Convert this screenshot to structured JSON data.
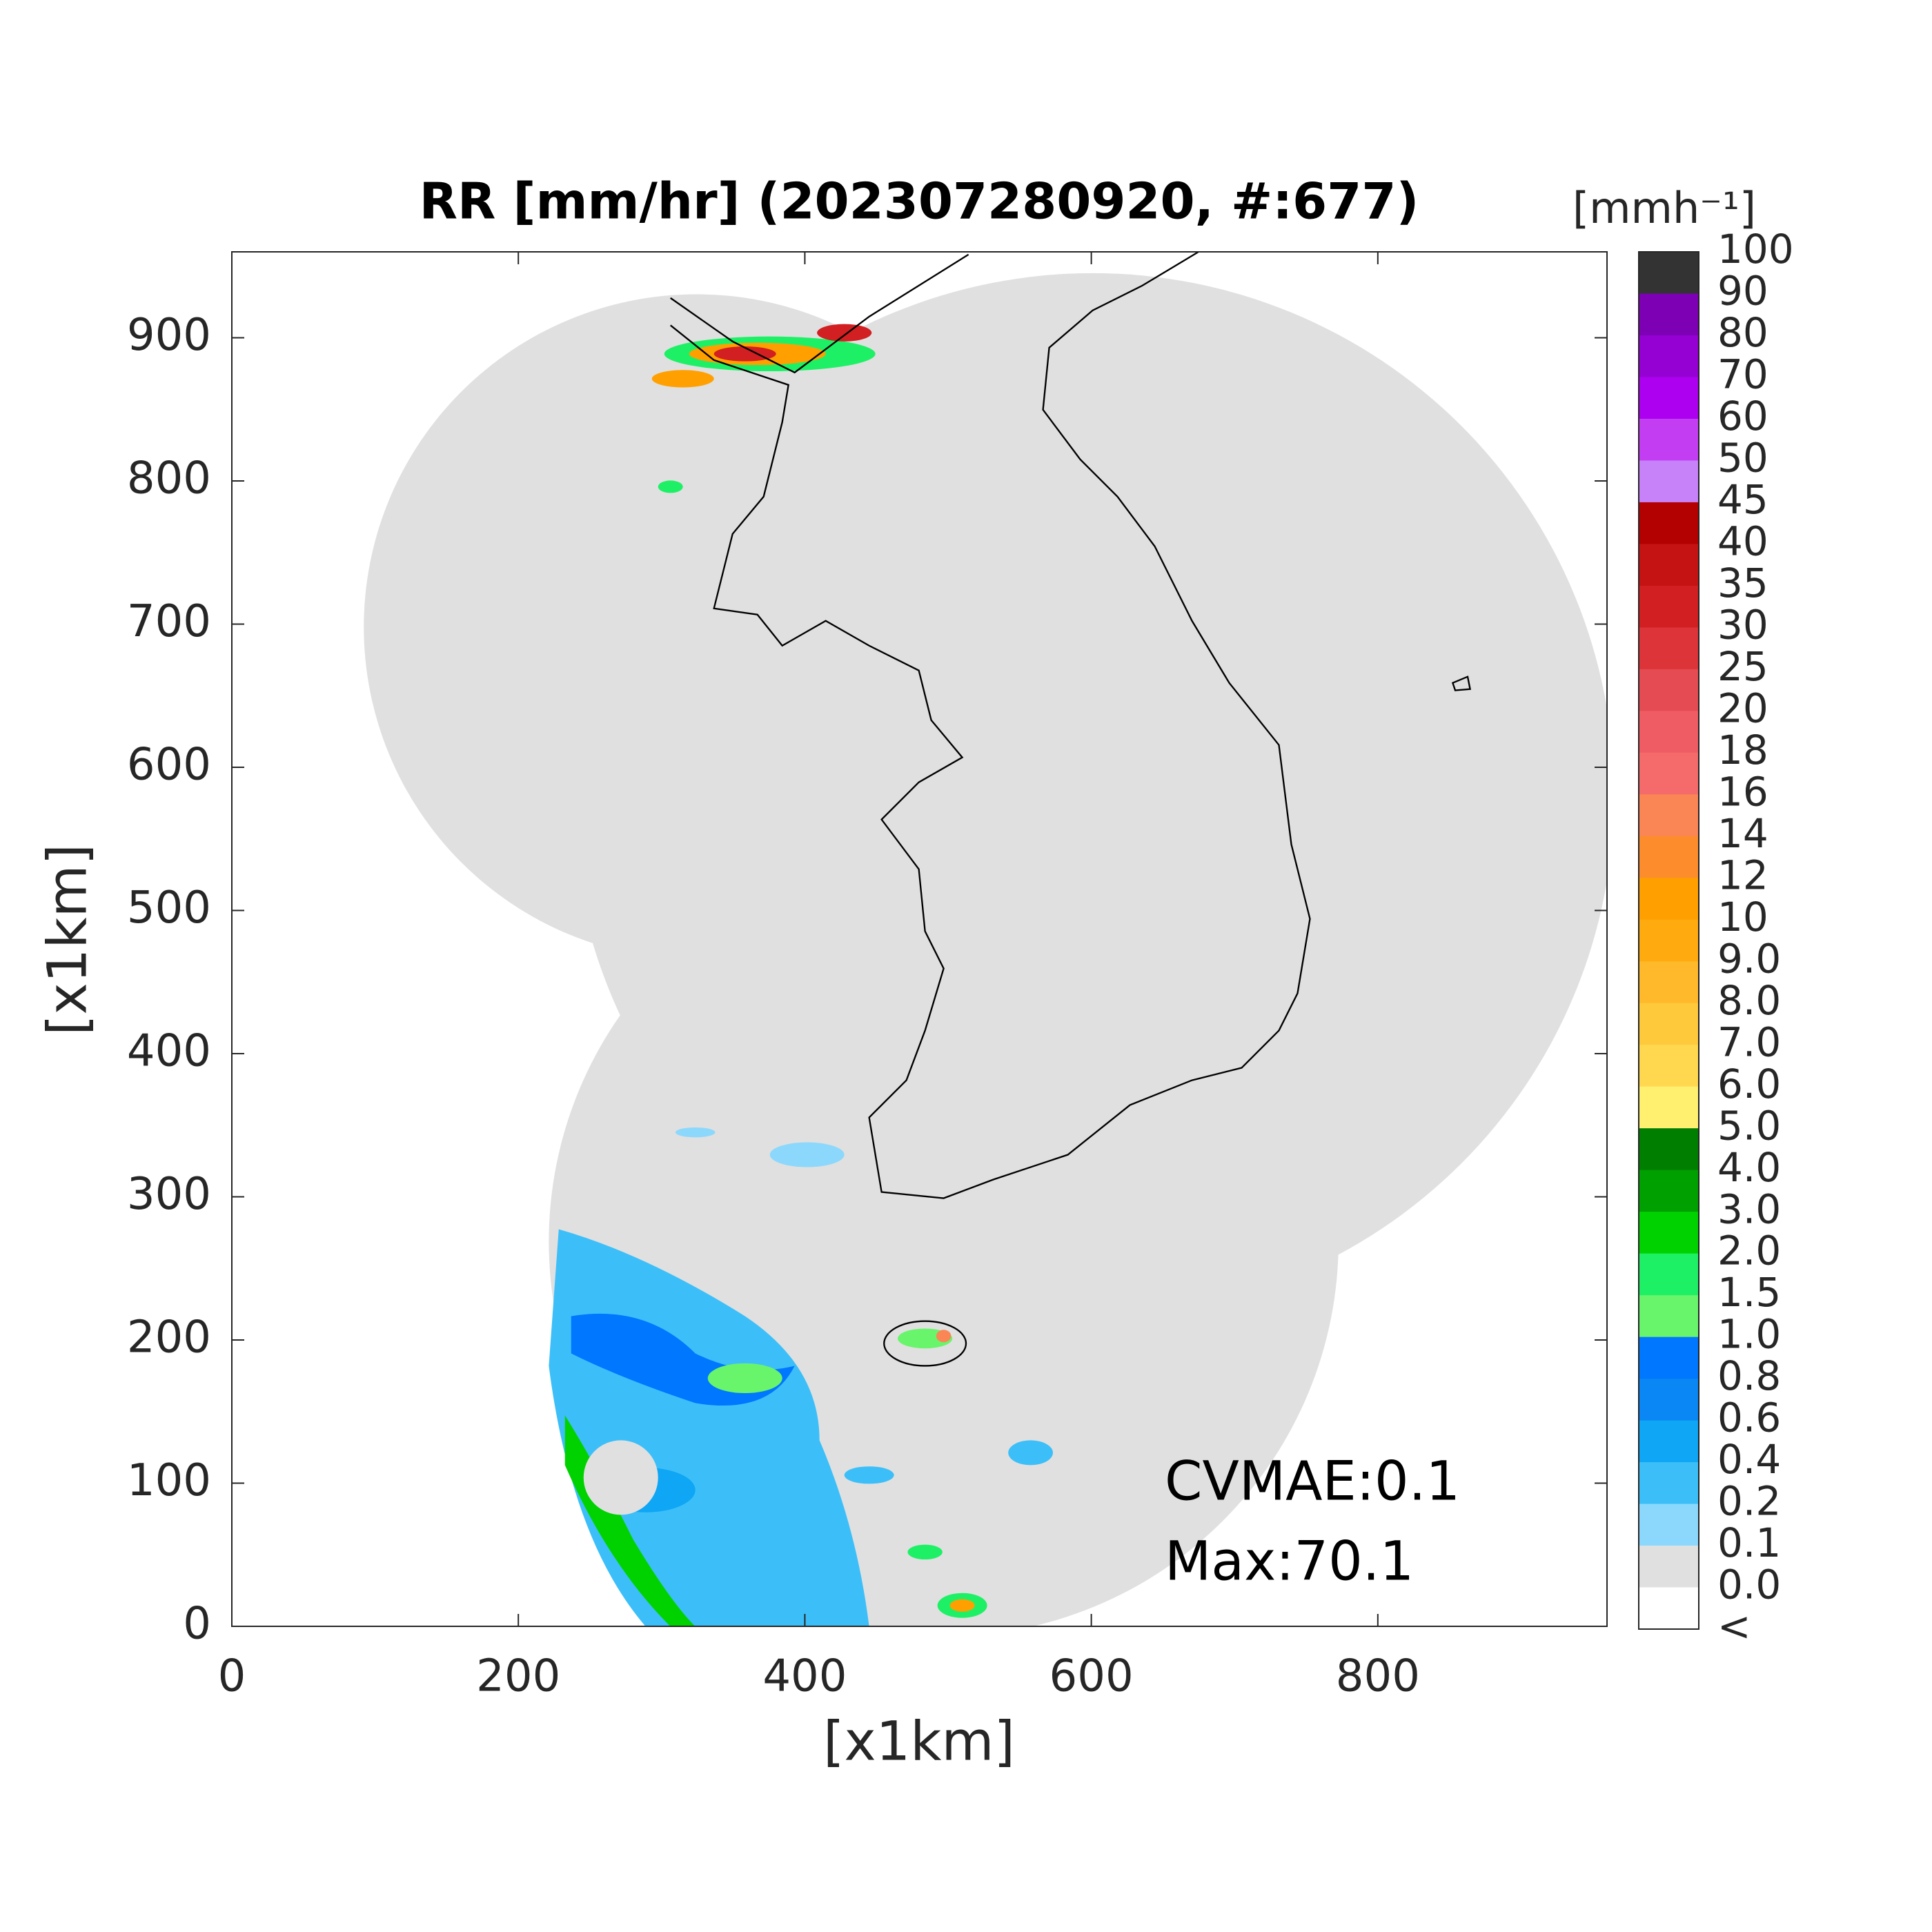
{
  "chart_data": {
    "type": "map",
    "title": "RR [mm/hr] (202307280920, #:677)",
    "x_label": "[x1km]",
    "y_label": "[x1km]",
    "xlim": [
      0,
      960
    ],
    "ylim": [
      0,
      960
    ],
    "xticks": [
      0,
      200,
      400,
      600,
      800
    ],
    "yticks": [
      0,
      100,
      200,
      300,
      400,
      500,
      600,
      700,
      800,
      900
    ],
    "annotations": [
      "CVMAE:0.1",
      "Max:70.1"
    ],
    "colorbar": {
      "title": "[mmh⁻¹]",
      "labels": [
        "100",
        "90",
        "80",
        "70",
        "60",
        "50",
        "45",
        "40",
        "35",
        "30",
        "25",
        "20",
        "18",
        "16",
        "14",
        "12",
        "10",
        "9.0",
        "8.0",
        "7.0",
        "6.0",
        "5.0",
        "4.0",
        "3.0",
        "2.0",
        "1.5",
        "1.0",
        "0.8",
        "0.6",
        "0.4",
        "0.2",
        "0.1",
        "0.0",
        "<"
      ],
      "colors": [
        "#333333",
        "#7e00b5",
        "#9500d3",
        "#ad00f0",
        "#c33ef3",
        "#c782f9",
        "#b30000",
        "#c51313",
        "#d21f21",
        "#dc3439",
        "#e54b52",
        "#f05c64",
        "#f56b6b",
        "#fb8655",
        "#fd8c2c",
        "#ffa000",
        "#ffaa0e",
        "#ffb92a",
        "#ffc93c",
        "#ffd84f",
        "#fff070",
        "#007e00",
        "#00a000",
        "#00d200",
        "#1ef066",
        "#69f56b",
        "#0077ff",
        "#0a86f5",
        "#0ea6f5",
        "#3cbff8",
        "#8cd8fc",
        "#e0e0e0",
        "#ffffff"
      ]
    }
  }
}
